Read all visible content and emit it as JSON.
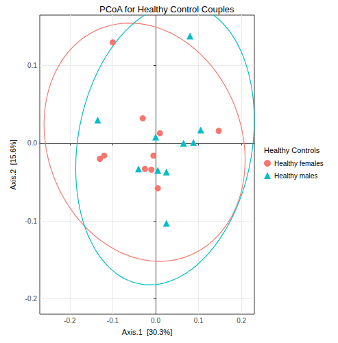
{
  "chart_data": {
    "type": "scatter",
    "title": "PCoA for Healthy Control Couples",
    "x_label": "Axis.1  [30.3%]",
    "y_label": "Axis.2  [15.6%]",
    "legend_title": "Healthy Controls",
    "legend": "right",
    "grid": true,
    "xlim": [
      -0.27,
      0.23
    ],
    "xticks": [
      -0.2,
      -0.1,
      {
        "value": 0,
        "label": "0.0"
      },
      0.1,
      0.2
    ],
    "ylim": [
      -0.22,
      0.165
    ],
    "yticks": [
      -0.2,
      -0.1,
      {
        "value": 0,
        "label": "0.0"
      },
      0.1
    ],
    "series": [
      {
        "name": "Healthy females",
        "color": "#F8766D",
        "marker": "circle",
        "x": [
          -0.1,
          -0.03,
          0.01,
          -0.13,
          -0.12,
          -0.025,
          -0.005,
          -0.01,
          0.005,
          0.147
        ],
        "values": [
          0.13,
          0.032,
          0.013,
          -0.02,
          -0.016,
          -0.033,
          -0.016,
          -0.034,
          -0.058,
          0.016
        ]
      },
      {
        "name": "Healthy males",
        "color": "#00BFC4",
        "marker": "triangle",
        "x": [
          0.08,
          -0.135,
          0.0,
          0.105,
          0.065,
          0.088,
          -0.04,
          0.005,
          0.025,
          0.025
        ],
        "values": [
          0.138,
          0.03,
          0.008,
          0.017,
          0.0,
          0.001,
          -0.033,
          -0.035,
          -0.037,
          -0.103
        ]
      }
    ]
  }
}
